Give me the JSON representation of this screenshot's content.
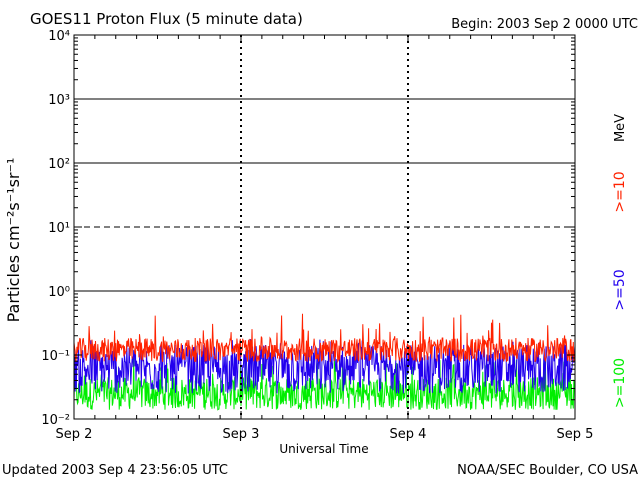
{
  "header": {
    "title": "GOES11 Proton Flux (5 minute data)",
    "begin": "Begin: 2003 Sep 2 0000 UTC"
  },
  "footer": {
    "updated": "Updated 2003 Sep  4 23:56:05 UTC",
    "credit": "NOAA/SEC Boulder, CO USA"
  },
  "chart_data": {
    "type": "line",
    "xlabel": "Universal Time",
    "ylabel": "Particles cm⁻²s⁻¹sr⁻¹",
    "x_range": [
      "2003-09-02T00:00Z",
      "2003-09-05T00:00Z"
    ],
    "x_ticks": [
      "Sep 2",
      "Sep 3",
      "Sep 4",
      "Sep 5"
    ],
    "y_scale": "log",
    "ylim": [
      0.01,
      10000
    ],
    "y_ticks": [
      "10⁻²",
      "10⁻¹",
      "10⁰",
      "10¹",
      "10²",
      "10³",
      "10⁴"
    ],
    "threshold_lines": [
      {
        "value": 1,
        "style": "solid"
      },
      {
        "value": 10,
        "style": "dashed"
      },
      {
        "value": 100,
        "style": "solid"
      },
      {
        "value": 1000,
        "style": "solid"
      }
    ],
    "legend_placement": "right",
    "unit_label": "MeV",
    "series": [
      {
        "name": ">=10",
        "color": "#ff2200",
        "typical": 0.12,
        "min": 0.07,
        "max": 0.45
      },
      {
        "name": ">=50",
        "color": "#2200ee",
        "typical": 0.06,
        "min": 0.02,
        "max": 0.18
      },
      {
        "name": ">=100",
        "color": "#00ee00",
        "typical": 0.025,
        "min": 0.012,
        "max": 0.1
      }
    ]
  }
}
